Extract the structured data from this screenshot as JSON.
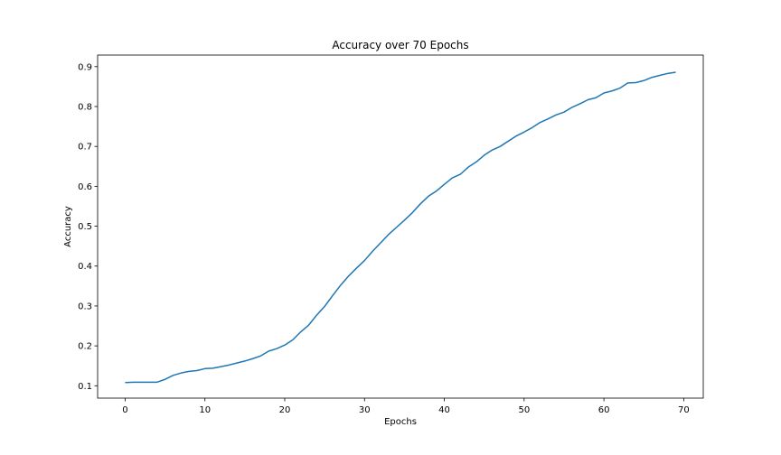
{
  "chart_data": {
    "type": "line",
    "title": "Accuracy over 70 Epochs",
    "xlabel": "Epochs",
    "ylabel": "Accuracy",
    "xlim": [
      -3.45,
      72.45
    ],
    "ylim": [
      0.069,
      0.929
    ],
    "xticks": [
      0,
      10,
      20,
      30,
      40,
      50,
      60,
      70
    ],
    "yticks": [
      0.1,
      0.2,
      0.3,
      0.4,
      0.5,
      0.6,
      0.7,
      0.8,
      0.9
    ],
    "grid": false,
    "series": [
      {
        "color": "#1f77b4",
        "x": [
          0,
          1,
          2,
          3,
          4,
          5,
          6,
          7,
          8,
          9,
          10,
          11,
          12,
          13,
          14,
          15,
          16,
          17,
          18,
          19,
          20,
          21,
          22,
          23,
          24,
          25,
          26,
          27,
          28,
          29,
          30,
          31,
          32,
          33,
          34,
          35,
          36,
          37,
          38,
          39,
          40,
          41,
          42,
          43,
          44,
          45,
          46,
          47,
          48,
          49,
          50,
          51,
          52,
          53,
          54,
          55,
          56,
          57,
          58,
          59,
          60,
          61,
          62,
          63,
          64,
          65,
          66,
          67,
          68,
          69
        ],
        "y": [
          0.108,
          0.109,
          0.109,
          0.109,
          0.109,
          0.116,
          0.126,
          0.132,
          0.136,
          0.138,
          0.143,
          0.144,
          0.148,
          0.152,
          0.157,
          0.162,
          0.168,
          0.175,
          0.187,
          0.193,
          0.202,
          0.215,
          0.235,
          0.252,
          0.277,
          0.299,
          0.326,
          0.352,
          0.375,
          0.395,
          0.414,
          0.437,
          0.458,
          0.479,
          0.497,
          0.515,
          0.534,
          0.556,
          0.575,
          0.588,
          0.605,
          0.621,
          0.63,
          0.648,
          0.661,
          0.678,
          0.691,
          0.7,
          0.713,
          0.726,
          0.736,
          0.747,
          0.76,
          0.769,
          0.779,
          0.786,
          0.798,
          0.807,
          0.817,
          0.822,
          0.834,
          0.839,
          0.846,
          0.859,
          0.86,
          0.865,
          0.873,
          0.878,
          0.883,
          0.886
        ]
      }
    ]
  }
}
